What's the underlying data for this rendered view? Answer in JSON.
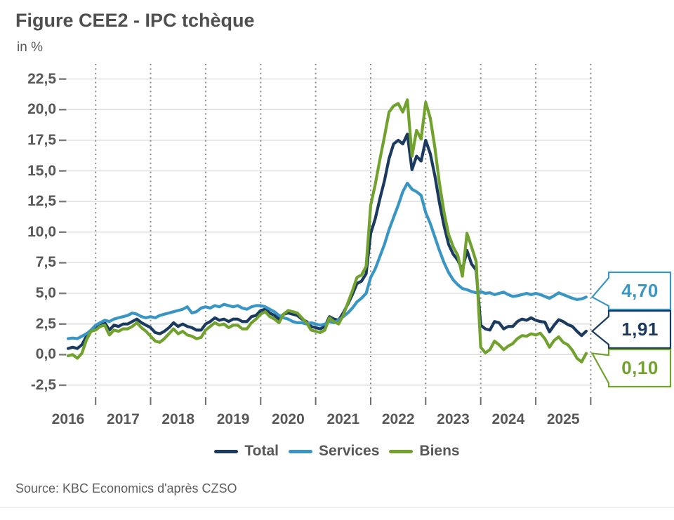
{
  "title": "Figure CEE2 - IPC tchèque",
  "subtitle": "in %",
  "source": "Source: KBC Economics d'après CZSO",
  "colors": {
    "total": "#1b3a60",
    "services": "#3996c4",
    "biens": "#70a22d",
    "gridline": "#d9d9d9",
    "dotted_gridline": "#8a8a8a",
    "tick": "#6e6e6e",
    "axis_text": "#575757",
    "title_text": "#4f4f4f"
  },
  "chart_data": {
    "type": "line",
    "title": "Figure CEE2 - IPC tchèque",
    "ylabel": "in %",
    "ylim": [
      -2.5,
      22.5
    ],
    "ytick_step": 2.5,
    "yticks": [
      {
        "v": 22.5,
        "label": "22,5"
      },
      {
        "v": 20.0,
        "label": "20,0"
      },
      {
        "v": 17.5,
        "label": "17,5"
      },
      {
        "v": 15.0,
        "label": "15,0"
      },
      {
        "v": 12.5,
        "label": "12,5"
      },
      {
        "v": 10.0,
        "label": "10,0"
      },
      {
        "v": 7.5,
        "label": "7,5"
      },
      {
        "v": 5.0,
        "label": "5,0"
      },
      {
        "v": 2.5,
        "label": "2,5"
      },
      {
        "v": 0.0,
        "label": "0,0"
      },
      {
        "v": -2.5,
        "label": "-2,5"
      }
    ],
    "x_year_labels": [
      "2016",
      "2017",
      "2018",
      "2019",
      "2020",
      "2021",
      "2022",
      "2023",
      "2024",
      "2025"
    ],
    "x_freq": "monthly",
    "grid": {
      "horizontal": "solid",
      "vertical": "dotted"
    },
    "legend_position": "bottom",
    "series": [
      {
        "name": "Total",
        "color": "#1b3a60",
        "end_label": "1,91",
        "values": [
          0.5,
          0.6,
          0.5,
          0.8,
          1.5,
          2.0,
          2.2,
          2.5,
          2.6,
          2.0,
          2.4,
          2.3,
          2.5,
          2.5,
          2.7,
          2.9,
          2.6,
          2.4,
          2.2,
          1.8,
          1.7,
          1.9,
          2.2,
          2.6,
          2.3,
          2.5,
          2.3,
          2.2,
          2.0,
          2.0,
          2.5,
          2.7,
          3.0,
          2.8,
          2.9,
          2.7,
          2.9,
          2.9,
          2.7,
          2.7,
          3.1,
          3.2,
          3.6,
          3.7,
          3.4,
          3.2,
          2.9,
          3.3,
          3.4,
          3.3,
          3.2,
          2.9,
          2.7,
          2.3,
          2.2,
          2.1,
          2.3,
          3.1,
          2.9,
          2.8,
          3.4,
          4.1,
          4.9,
          5.8,
          6.0,
          6.6,
          9.9,
          11.1,
          12.7,
          14.2,
          16.0,
          17.2,
          17.5,
          17.2,
          18.0,
          15.1,
          16.2,
          15.8,
          17.5,
          16.4,
          14.6,
          12.4,
          10.5,
          9.0,
          8.2,
          7.7,
          6.9,
          8.5,
          7.4,
          6.9,
          2.4,
          2.1,
          2.0,
          2.7,
          2.6,
          2.1,
          2.3,
          2.3,
          2.7,
          2.9,
          2.8,
          3.0,
          2.8,
          2.7,
          2.65,
          1.85,
          2.4,
          2.85,
          2.7,
          2.45,
          2.3,
          1.9,
          1.55,
          1.91
        ]
      },
      {
        "name": "Services",
        "color": "#3996c4",
        "end_label": "4,70",
        "values": [
          1.3,
          1.35,
          1.3,
          1.5,
          1.7,
          2.0,
          2.4,
          2.6,
          2.8,
          2.7,
          2.9,
          3.0,
          3.1,
          3.2,
          3.4,
          3.3,
          3.1,
          3.0,
          3.1,
          3.0,
          3.2,
          3.3,
          3.4,
          3.5,
          3.6,
          3.7,
          3.9,
          3.4,
          3.5,
          3.8,
          3.9,
          3.8,
          4.0,
          3.9,
          4.1,
          4.0,
          3.9,
          4.0,
          3.8,
          3.7,
          3.9,
          4.0,
          4.0,
          3.9,
          3.7,
          3.5,
          3.2,
          3.0,
          2.9,
          2.7,
          2.6,
          2.6,
          2.5,
          2.6,
          2.5,
          2.4,
          2.5,
          2.7,
          2.6,
          2.8,
          3.1,
          3.4,
          3.8,
          4.3,
          4.6,
          5.0,
          6.3,
          7.0,
          8.0,
          9.0,
          10.2,
          11.2,
          12.2,
          13.3,
          14.0,
          13.5,
          13.3,
          13.0,
          11.6,
          10.7,
          9.6,
          8.5,
          7.5,
          6.7,
          6.1,
          5.7,
          5.4,
          5.3,
          5.15,
          5.05,
          5.15,
          5.0,
          5.05,
          4.9,
          5.0,
          5.1,
          4.9,
          4.75,
          4.8,
          4.9,
          5.0,
          4.9,
          5.0,
          4.9,
          4.75,
          4.6,
          4.8,
          5.05,
          4.9,
          4.75,
          4.6,
          4.5,
          4.55,
          4.7
        ]
      },
      {
        "name": "Biens",
        "color": "#70a22d",
        "end_label": "0,10",
        "values": [
          -0.1,
          0.0,
          -0.3,
          0.1,
          1.2,
          1.9,
          2.0,
          2.3,
          2.4,
          1.6,
          2.0,
          1.9,
          2.1,
          2.1,
          2.3,
          2.6,
          2.2,
          1.9,
          1.5,
          1.1,
          1.0,
          1.3,
          1.7,
          2.1,
          1.7,
          1.9,
          1.6,
          1.5,
          1.3,
          1.4,
          2.0,
          2.3,
          2.6,
          2.4,
          2.5,
          2.2,
          2.4,
          2.4,
          2.1,
          2.1,
          2.6,
          2.9,
          3.3,
          3.5,
          3.1,
          2.9,
          2.6,
          3.3,
          3.6,
          3.5,
          3.4,
          3.0,
          2.6,
          2.0,
          1.9,
          1.8,
          2.0,
          3.0,
          2.7,
          2.5,
          3.2,
          4.2,
          5.2,
          6.3,
          6.5,
          7.2,
          12.2,
          13.9,
          15.9,
          17.8,
          19.8,
          20.3,
          20.5,
          19.8,
          20.8,
          16.2,
          18.3,
          17.6,
          20.6,
          19.3,
          16.9,
          14.0,
          11.6,
          9.8,
          8.8,
          8.1,
          6.4,
          9.9,
          8.8,
          7.6,
          0.6,
          0.15,
          0.4,
          1.1,
          0.8,
          0.4,
          0.7,
          0.9,
          1.3,
          1.55,
          1.5,
          1.7,
          1.6,
          1.75,
          1.3,
          0.6,
          1.15,
          1.45,
          1.0,
          0.8,
          0.35,
          -0.3,
          -0.6,
          0.1
        ]
      }
    ]
  }
}
